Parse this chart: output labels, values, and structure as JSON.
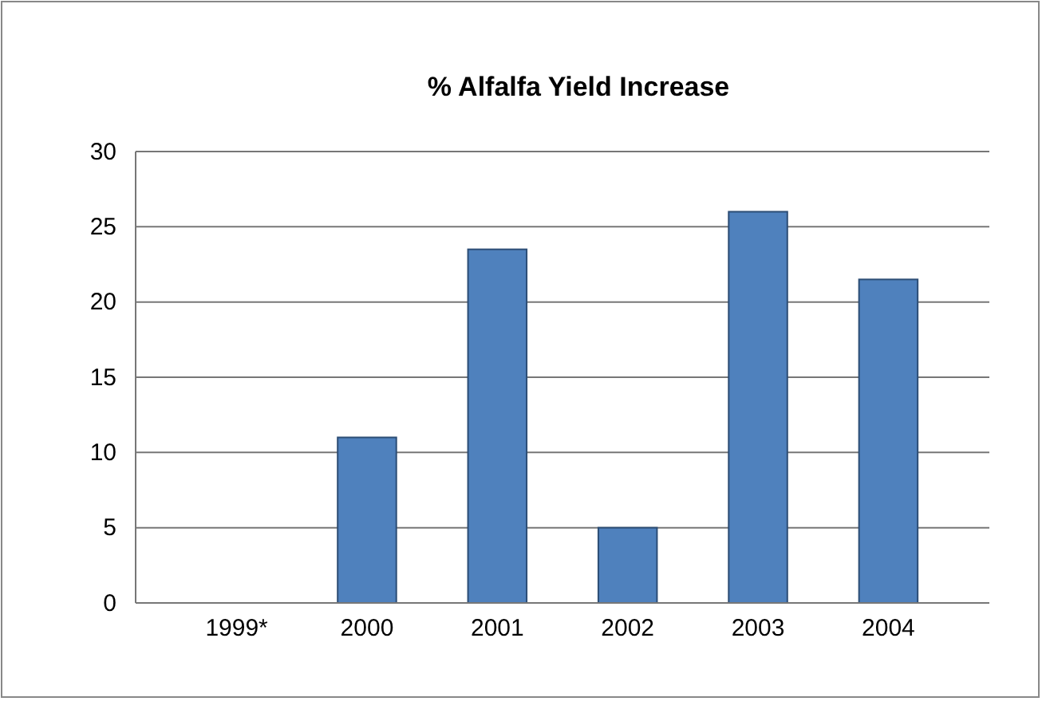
{
  "chart_data": {
    "type": "bar",
    "title": "% Alfalfa Yield Increase",
    "categories": [
      "1999*",
      "2000",
      "2001",
      "2002",
      "2003",
      "2004"
    ],
    "values": [
      0,
      11,
      23.5,
      5,
      26,
      21.5
    ],
    "color": "#4f81bd",
    "ylim": [
      0,
      30
    ],
    "yticks": [
      0,
      5,
      10,
      15,
      20,
      25,
      30
    ],
    "grid": "y"
  }
}
